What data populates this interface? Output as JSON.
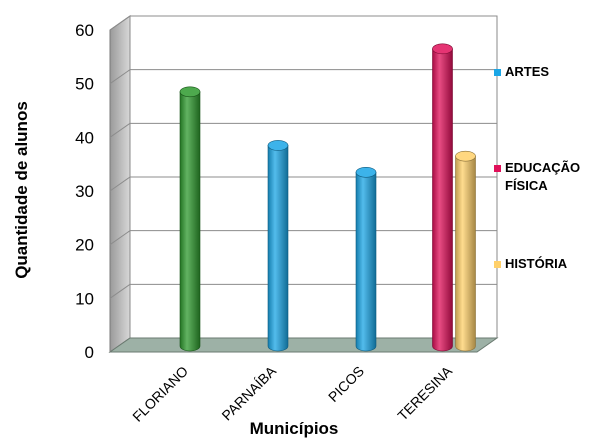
{
  "chart_data": {
    "type": "bar",
    "categories": [
      "FLORIANO",
      "PARNAÍBA",
      "PICOS",
      "TERESINA"
    ],
    "series": [
      {
        "name": "ARTES",
        "color": "#1aa6e6",
        "values": [
          null,
          37,
          32,
          null
        ]
      },
      {
        "name": "EDUCAÇÃO FÍSICA",
        "color": "#e0105a",
        "values": [
          null,
          null,
          null,
          55
        ]
      },
      {
        "name": "HISTÓRIA",
        "color": "#ffd06a",
        "values": [
          null,
          null,
          null,
          35
        ]
      }
    ],
    "extra_bars": [
      {
        "category": "FLORIANO",
        "value": 47,
        "color": "#2e9a2e"
      }
    ],
    "xlabel": "Municípios",
    "ylabel": "Quantidade de alunos",
    "yticks": [
      0,
      10,
      20,
      30,
      40,
      50,
      60
    ],
    "ylim": [
      0,
      60
    ],
    "grid": true,
    "legend_position": "right"
  }
}
